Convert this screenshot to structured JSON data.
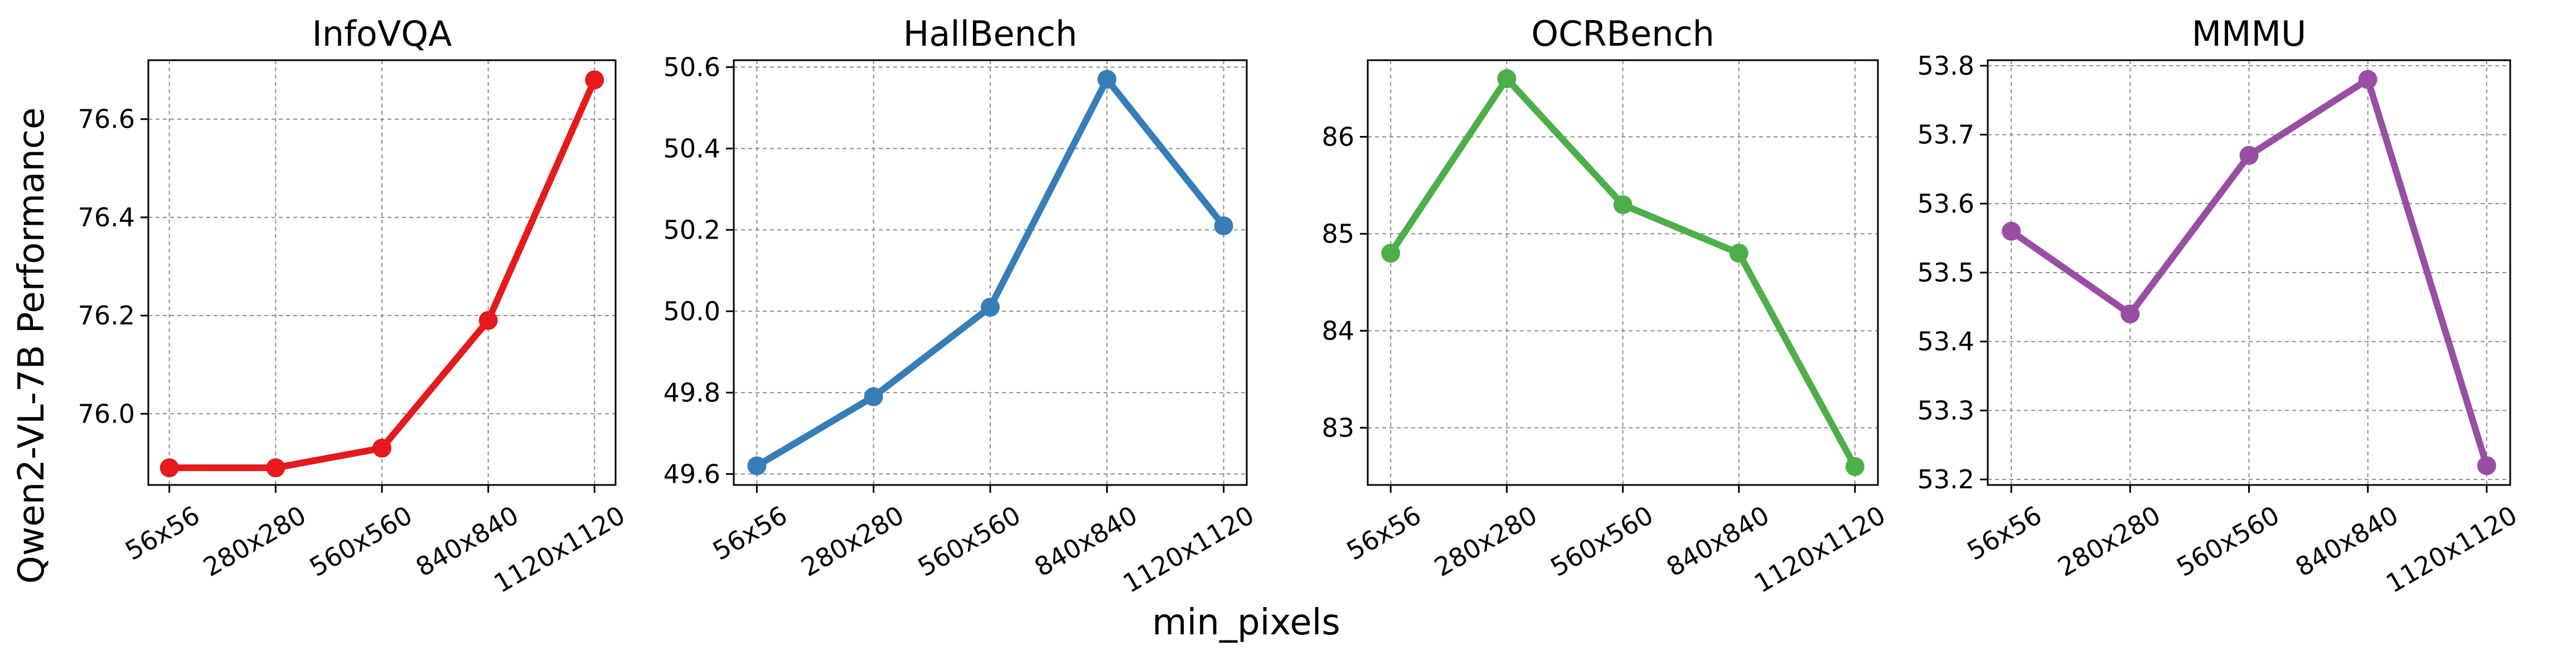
{
  "figure": {
    "ylabel": "Qwen2-VL-7B Performance",
    "xlabel": "min_pixels"
  },
  "chart_data": [
    {
      "type": "line",
      "title": "InfoVQA",
      "color": "#e41a1c",
      "categories": [
        "56x56",
        "280x280",
        "560x560",
        "840x840",
        "1120x1120"
      ],
      "series": [
        {
          "values": [
            75.89,
            75.89,
            75.93,
            76.19,
            76.68
          ]
        }
      ],
      "ylim": [
        75.855,
        76.72
      ],
      "yticks": [
        76.0,
        76.2,
        76.4,
        76.6
      ],
      "ytick_labels": [
        "76.0",
        "76.2",
        "76.4",
        "76.6"
      ],
      "grid": true
    },
    {
      "type": "line",
      "title": "HallBench",
      "color": "#377eb8",
      "categories": [
        "56x56",
        "280x280",
        "560x560",
        "840x840",
        "1120x1120"
      ],
      "series": [
        {
          "values": [
            49.62,
            49.79,
            50.01,
            50.57,
            50.21
          ]
        }
      ],
      "ylim": [
        49.573,
        50.617
      ],
      "yticks": [
        49.6,
        49.8,
        50.0,
        50.2,
        50.4,
        50.6
      ],
      "ytick_labels": [
        "49.6",
        "49.8",
        "50.0",
        "50.2",
        "50.4",
        "50.6"
      ],
      "grid": true
    },
    {
      "type": "line",
      "title": "OCRBench",
      "color": "#4daf4a",
      "categories": [
        "56x56",
        "280x280",
        "560x560",
        "840x840",
        "1120x1120"
      ],
      "series": [
        {
          "values": [
            84.8,
            86.6,
            85.3,
            84.8,
            82.6
          ]
        }
      ],
      "ylim": [
        82.41,
        86.79
      ],
      "yticks": [
        83,
        84,
        85,
        86
      ],
      "ytick_labels": [
        "83",
        "84",
        "85",
        "86"
      ],
      "grid": true
    },
    {
      "type": "line",
      "title": "MMMU",
      "color": "#984ea3",
      "categories": [
        "56x56",
        "280x280",
        "560x560",
        "840x840",
        "1120x1120"
      ],
      "series": [
        {
          "values": [
            53.56,
            53.44,
            53.67,
            53.78,
            53.22
          ]
        }
      ],
      "ylim": [
        53.192,
        53.808
      ],
      "yticks": [
        53.2,
        53.3,
        53.4,
        53.5,
        53.6,
        53.7,
        53.8
      ],
      "ytick_labels": [
        "53.2",
        "53.3",
        "53.4",
        "53.5",
        "53.6",
        "53.7",
        "53.8"
      ],
      "grid": true
    }
  ]
}
